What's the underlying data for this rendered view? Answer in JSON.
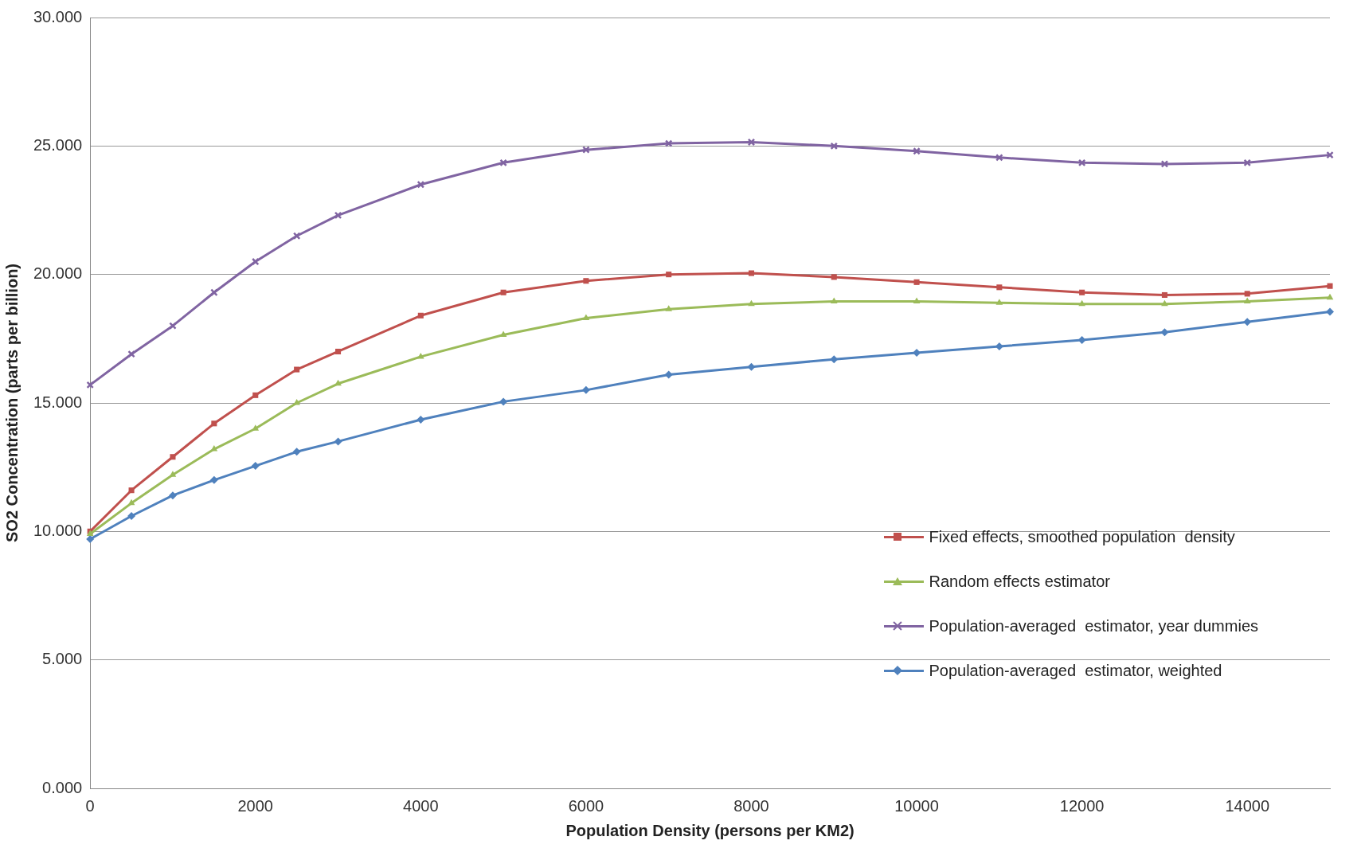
{
  "chart_data": {
    "type": "line",
    "xlabel": "Population Density (persons per KM2)",
    "ylabel": "SO2 Concentration (parts per billion)",
    "xlim": [
      0,
      15000
    ],
    "xticks": [
      0,
      2000,
      4000,
      6000,
      8000,
      10000,
      12000,
      14000
    ],
    "ylim": [
      0,
      30
    ],
    "yticks": [
      {
        "value": 0,
        "label": "0.000"
      },
      {
        "value": 5,
        "label": "5.000"
      },
      {
        "value": 10,
        "label": "10.000"
      },
      {
        "value": 15,
        "label": "15.000"
      },
      {
        "value": 20,
        "label": "20.000"
      },
      {
        "value": 25,
        "label": "25.000"
      },
      {
        "value": 30,
        "label": "30.000"
      }
    ],
    "grid": "y",
    "legend": "bottom right",
    "line_style": "solid",
    "x": [
      0,
      500,
      1000,
      1500,
      2000,
      2500,
      3000,
      4000,
      5000,
      6000,
      7000,
      8000,
      9000,
      10000,
      11000,
      12000,
      13000,
      14000,
      15000
    ],
    "series": [
      {
        "name": "Fixed effects, smoothed population  density",
        "color": "#c0504d",
        "marker": "square",
        "values": [
          10.0,
          11.6,
          12.9,
          14.2,
          15.3,
          16.3,
          17.0,
          18.4,
          19.3,
          19.75,
          20.0,
          20.05,
          19.9,
          19.7,
          19.5,
          19.3,
          19.2,
          19.25,
          19.55
        ]
      },
      {
        "name": "Random effects estimator",
        "color": "#9bbb59",
        "marker": "triangle",
        "values": [
          9.9,
          11.1,
          12.2,
          13.2,
          14.0,
          15.0,
          15.75,
          16.8,
          17.65,
          18.3,
          18.65,
          18.85,
          18.95,
          18.95,
          18.9,
          18.85,
          18.85,
          18.95,
          19.1
        ]
      },
      {
        "name": "Population-averaged  estimator, year dummies",
        "color": "#8064a2",
        "marker": "cross",
        "values": [
          15.7,
          16.9,
          18.0,
          19.3,
          20.5,
          21.5,
          22.3,
          23.5,
          24.35,
          24.85,
          25.1,
          25.15,
          25.0,
          24.8,
          24.55,
          24.35,
          24.3,
          24.35,
          24.65
        ]
      },
      {
        "name": "Population-averaged  estimator, weighted",
        "color": "#4f81bd",
        "marker": "diamond",
        "values": [
          9.7,
          10.6,
          11.4,
          12.0,
          12.55,
          13.1,
          13.5,
          14.35,
          15.05,
          15.5,
          16.1,
          16.4,
          16.7,
          16.95,
          17.2,
          17.45,
          17.75,
          18.15,
          18.55
        ]
      }
    ]
  }
}
